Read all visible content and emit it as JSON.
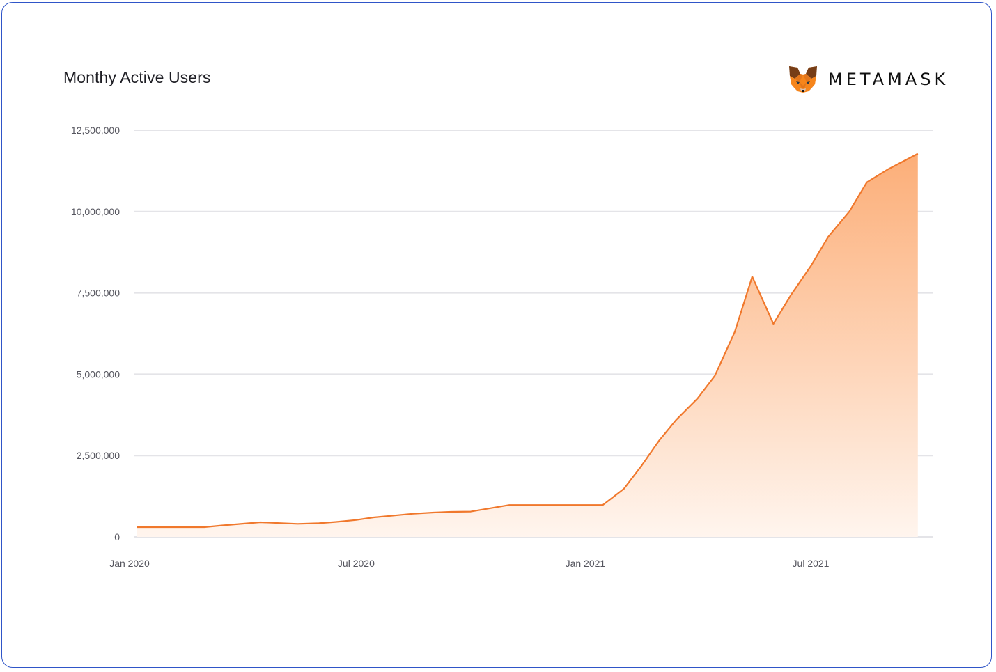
{
  "title": "Monthy Active Users",
  "brand": {
    "name": "METAMASK",
    "logo_icon": "fox-icon"
  },
  "colors": {
    "line": "#f0782c",
    "area_top": "#fcae78",
    "area_bottom": "#fff5ee",
    "grid": "#e4e4e8",
    "border": "#2f55c8"
  },
  "chart_data": {
    "type": "area",
    "title": "Monthy Active Users",
    "xlabel": "",
    "ylabel": "",
    "x_ticks": [
      "Jan 2020",
      "Jul 2020",
      "Jan 2021",
      "Jul 2021"
    ],
    "y_ticks": [
      "0",
      "2,500,000",
      "5,000,000",
      "7,500,000",
      "10,000,000",
      "12,500,000"
    ],
    "ylim": [
      0,
      12500000
    ],
    "xlim": [
      "2020-01-01",
      "2021-09-25"
    ],
    "grid": true,
    "legend": "none",
    "x": [
      "2020-01-07",
      "2020-03-01",
      "2020-03-15",
      "2020-04-15",
      "2020-05-15",
      "2020-06-01",
      "2020-06-15",
      "2020-07-01",
      "2020-07-15",
      "2020-08-01",
      "2020-08-15",
      "2020-09-01",
      "2020-09-15",
      "2020-10-01",
      "2020-11-01",
      "2020-12-01",
      "2021-01-01",
      "2021-01-15",
      "2021-02-01",
      "2021-02-15",
      "2021-03-01",
      "2021-03-15",
      "2021-04-01",
      "2021-04-15",
      "2021-05-01",
      "2021-05-15",
      "2021-06-01",
      "2021-06-15",
      "2021-07-01",
      "2021-07-15",
      "2021-08-01",
      "2021-08-15",
      "2021-09-01",
      "2021-09-25"
    ],
    "y": [
      300000,
      300000,
      350000,
      450000,
      400000,
      420000,
      460000,
      520000,
      600000,
      660000,
      710000,
      750000,
      770000,
      780000,
      980000,
      980000,
      980000,
      980000,
      1480000,
      2180000,
      2950000,
      3600000,
      4250000,
      4950000,
      6300000,
      8000000,
      6550000,
      7430000,
      8320000,
      9220000,
      10000000,
      10900000,
      11300000,
      11780000
    ]
  }
}
